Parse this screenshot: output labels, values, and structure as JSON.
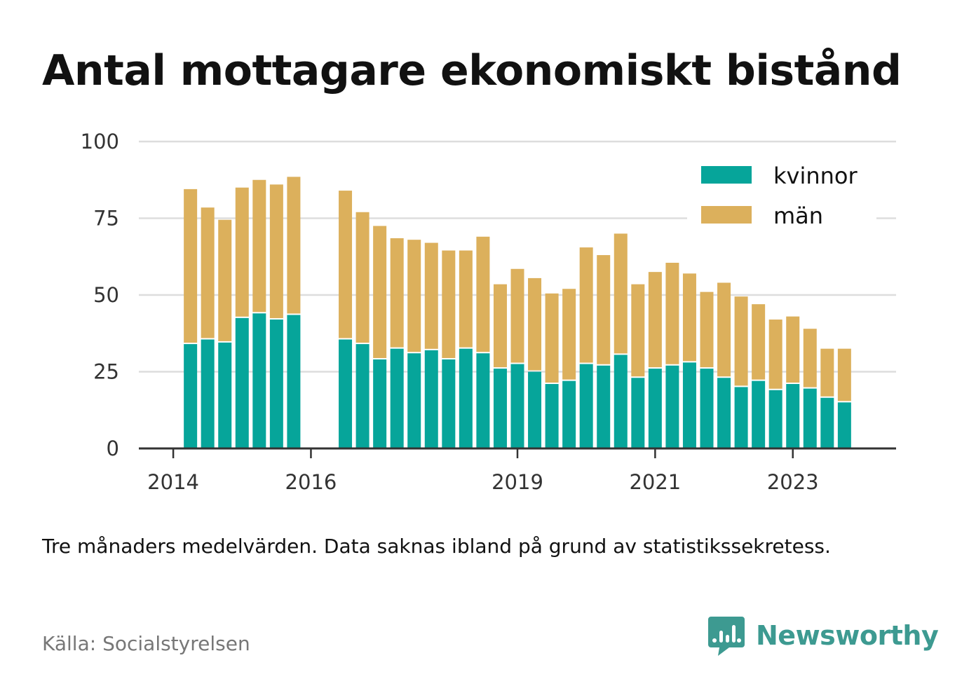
{
  "header": {
    "title": "Antal mottagare ekonomiskt bistånd"
  },
  "footer": {
    "note": "Tre månaders medelvärden. Data saknas ibland på grund av statistikssekretess.",
    "source": "Källa: Socialstyrelsen",
    "brand": "Newsworthy"
  },
  "colors": {
    "kvinnor": "#06a59a",
    "man": "#dcb05c",
    "grid": "#dddddd",
    "axis": "#333333",
    "brand": "#3d9a91"
  },
  "chart_data": {
    "type": "bar",
    "stacked": true,
    "title": "Antal mottagare ekonomiskt bistånd",
    "xlabel": "",
    "ylabel": "",
    "ylim": [
      0,
      100
    ],
    "yticks": [
      0,
      25,
      50,
      75,
      100
    ],
    "xlim": [
      2013.5,
      2024.5
    ],
    "xticks": [
      2014,
      2016,
      2019,
      2021,
      2023
    ],
    "grid": true,
    "legend_position": "top-right",
    "x": [
      2014.25,
      2014.5,
      2014.75,
      2015.0,
      2015.25,
      2015.5,
      2015.75,
      2016.5,
      2016.75,
      2017.0,
      2017.25,
      2017.5,
      2017.75,
      2018.0,
      2018.25,
      2018.5,
      2018.75,
      2019.0,
      2019.25,
      2019.5,
      2019.75,
      2020.0,
      2020.25,
      2020.5,
      2020.75,
      2021.0,
      2021.25,
      2021.5,
      2021.75,
      2022.0,
      2022.25,
      2022.5,
      2022.75,
      2023.0,
      2023.25,
      2023.5,
      2023.75
    ],
    "series": [
      {
        "name": "kvinnor",
        "values": [
          34,
          35.5,
          34.5,
          42.5,
          44,
          42,
          43.5,
          35.5,
          34,
          29,
          32.5,
          31,
          32,
          29,
          32.5,
          31,
          26,
          27.5,
          25,
          21,
          22,
          27.5,
          27,
          30.5,
          23,
          26,
          27,
          28,
          26,
          23,
          20,
          22,
          19,
          21,
          19.5,
          16.5,
          15
        ]
      },
      {
        "name": "män",
        "values": [
          50.5,
          43,
          40,
          42.5,
          43.5,
          44,
          45,
          48.5,
          43,
          43.5,
          36,
          37,
          35,
          35.5,
          32,
          38,
          27.5,
          31,
          30.5,
          29.5,
          30,
          38,
          36,
          39.5,
          30.5,
          31.5,
          33.5,
          29,
          25,
          31,
          29.5,
          25,
          23,
          22,
          19.5,
          16,
          17.5
        ]
      }
    ]
  }
}
